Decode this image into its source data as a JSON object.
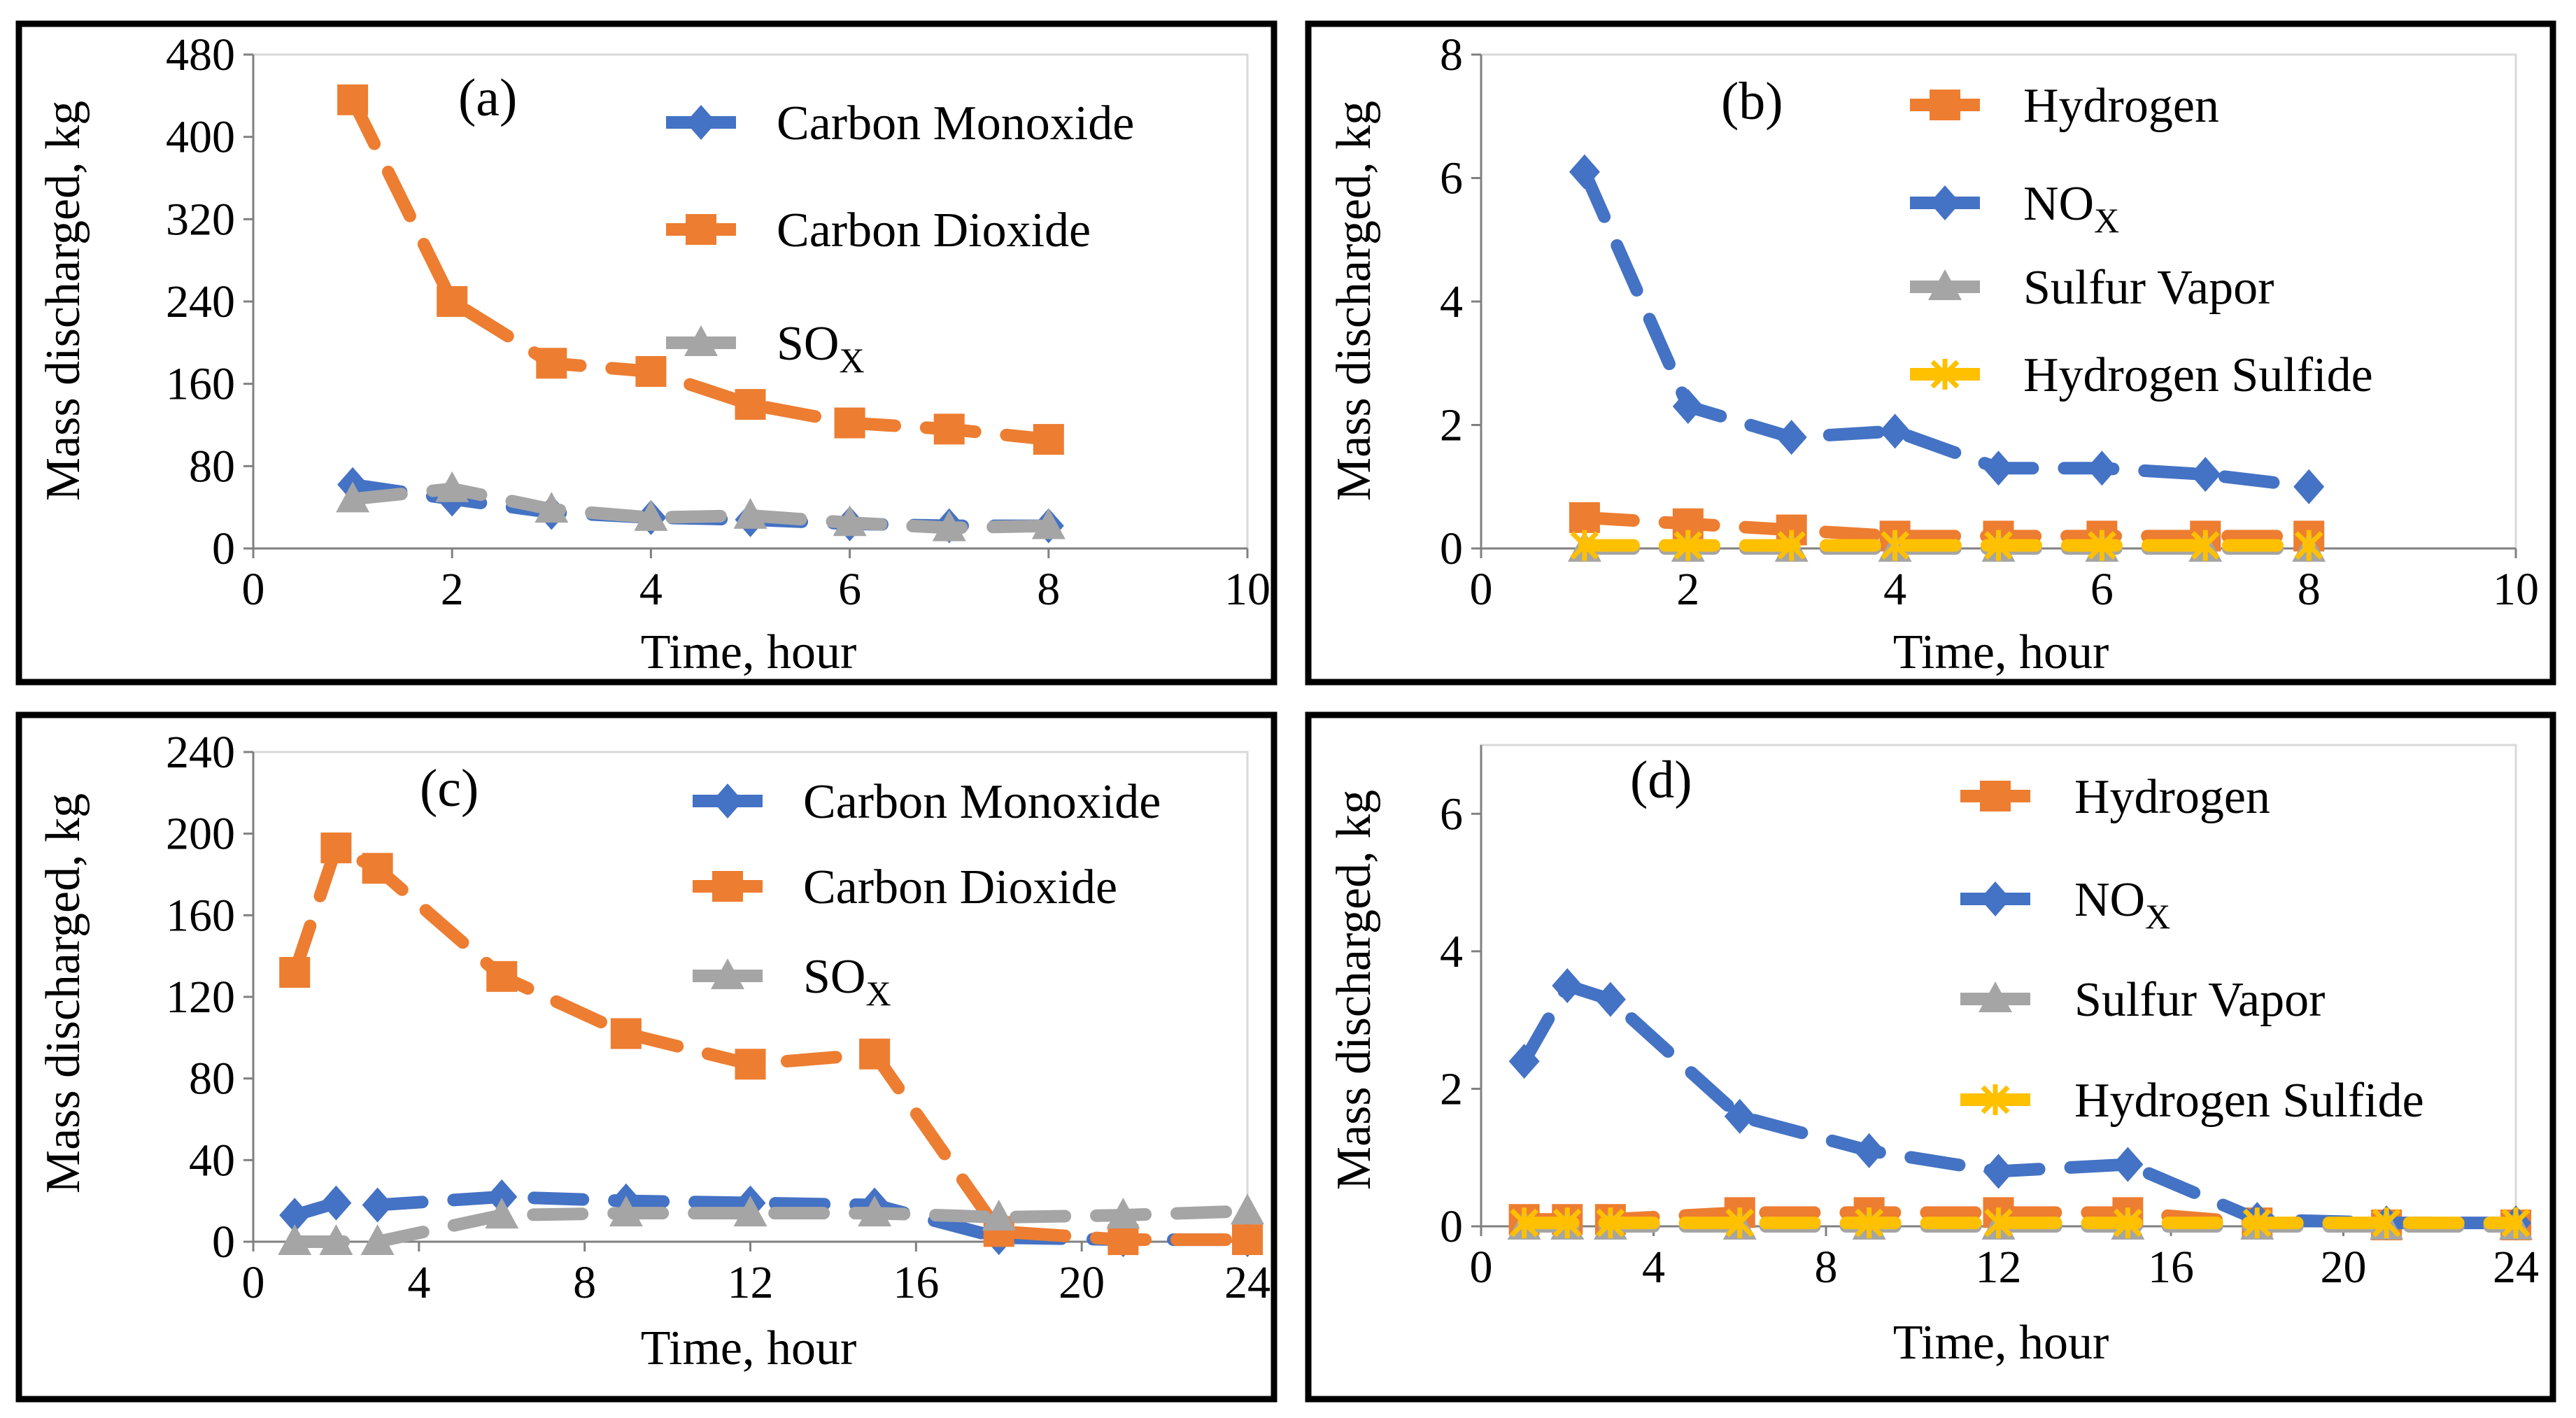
{
  "colors": {
    "co": "#4472C4",
    "co2": "#ED7D31",
    "sox": "#A5A5A5",
    "hydrogen": "#ED7D31",
    "nox": "#4472C4",
    "sulfur_vapor": "#A5A5A5",
    "h2s": "#FFC000"
  },
  "chart_data": [
    {
      "id": "a",
      "type": "line",
      "panel_label": "(a)",
      "xlabel": "Time, hour",
      "ylabel": "Mass discharged, kg",
      "xlim": [
        0,
        10
      ],
      "ylim": [
        0,
        480
      ],
      "xticks": [
        0,
        2,
        4,
        6,
        8,
        10
      ],
      "yticks": [
        0,
        80,
        160,
        240,
        320,
        400,
        480
      ],
      "series": [
        {
          "name": "Carbon Monoxide",
          "name_sub": "",
          "marker": "diamond",
          "color": "#4472C4",
          "x": [
            1,
            2,
            3,
            4,
            5,
            6,
            7,
            8
          ],
          "y": [
            62,
            48,
            35,
            30,
            28,
            24,
            22,
            22
          ]
        },
        {
          "name": "Carbon Dioxide",
          "name_sub": "",
          "marker": "square",
          "color": "#ED7D31",
          "x": [
            1,
            2,
            3,
            4,
            5,
            6,
            7,
            8
          ],
          "y": [
            436,
            240,
            180,
            172,
            140,
            122,
            116,
            106
          ]
        },
        {
          "name": "SO",
          "name_sub": "X",
          "marker": "triangle",
          "color": "#A5A5A5",
          "x": [
            1,
            2,
            3,
            4,
            5,
            6,
            7,
            8
          ],
          "y": [
            48,
            58,
            38,
            30,
            32,
            25,
            20,
            22
          ]
        }
      ]
    },
    {
      "id": "b",
      "type": "line",
      "panel_label": "(b)",
      "xlabel": "Time, hour",
      "ylabel": "Mass discharged, kg",
      "xlim": [
        0,
        10
      ],
      "ylim": [
        0,
        8
      ],
      "xticks": [
        0,
        2,
        4,
        6,
        8,
        10
      ],
      "yticks": [
        0,
        2,
        4,
        6,
        8
      ],
      "series": [
        {
          "name": "Hydrogen",
          "name_sub": "",
          "marker": "square",
          "color": "#ED7D31",
          "x": [
            1,
            2,
            3,
            4,
            5,
            6,
            7,
            8
          ],
          "y": [
            0.5,
            0.4,
            0.3,
            0.2,
            0.2,
            0.2,
            0.2,
            0.2
          ]
        },
        {
          "name": "NO",
          "name_sub": "X",
          "marker": "diamond",
          "color": "#4472C4",
          "x": [
            1,
            2,
            3,
            4,
            5,
            6,
            7,
            8
          ],
          "y": [
            6.1,
            2.3,
            1.8,
            1.9,
            1.3,
            1.3,
            1.2,
            1.0
          ]
        },
        {
          "name": "Sulfur Vapor",
          "name_sub": "",
          "marker": "triangle",
          "color": "#A5A5A5",
          "x": [
            1,
            2,
            3,
            4,
            5,
            6,
            7,
            8
          ],
          "y": [
            0,
            0,
            0,
            0,
            0,
            0,
            0,
            0
          ]
        },
        {
          "name": "Hydrogen Sulfide",
          "name_sub": "",
          "marker": "star",
          "color": "#FFC000",
          "x": [
            1,
            2,
            3,
            4,
            5,
            6,
            7,
            8
          ],
          "y": [
            0.05,
            0.05,
            0.05,
            0.05,
            0.05,
            0.05,
            0.05,
            0.05
          ]
        }
      ]
    },
    {
      "id": "c",
      "type": "line",
      "panel_label": "(c)",
      "xlabel": "Time, hour",
      "ylabel": "Mass discharged, kg",
      "xlim": [
        0,
        24
      ],
      "ylim": [
        0,
        240
      ],
      "xticks": [
        0,
        4,
        8,
        12,
        16,
        20,
        24
      ],
      "yticks": [
        0,
        40,
        80,
        120,
        160,
        200,
        240
      ],
      "series": [
        {
          "name": "Carbon Monoxide",
          "name_sub": "",
          "marker": "diamond",
          "color": "#4472C4",
          "x": [
            1,
            2,
            3,
            6,
            9,
            12,
            15,
            18,
            21,
            24
          ],
          "y": [
            13,
            19,
            18,
            22,
            20,
            19,
            18,
            2,
            1,
            1
          ]
        },
        {
          "name": "Carbon Dioxide",
          "name_sub": "",
          "marker": "square",
          "color": "#ED7D31",
          "x": [
            1,
            2,
            3,
            6,
            9,
            12,
            15,
            18,
            21,
            24
          ],
          "y": [
            132,
            193,
            183,
            130,
            102,
            87,
            92,
            5,
            1,
            1
          ]
        },
        {
          "name": "SO",
          "name_sub": "X",
          "marker": "triangle",
          "color": "#A5A5A5",
          "x": [
            1,
            2,
            3,
            6,
            9,
            12,
            15,
            18,
            21,
            24
          ],
          "y": [
            0,
            0,
            0,
            13,
            14,
            14,
            14,
            12,
            13,
            15
          ]
        }
      ]
    },
    {
      "id": "d",
      "type": "line",
      "panel_label": "(d)",
      "xlabel": "Time, hour",
      "ylabel": "Mass discharged, kg",
      "xlim": [
        0,
        24
      ],
      "ylim": [
        0,
        7
      ],
      "xticks": [
        0,
        4,
        8,
        12,
        16,
        20,
        24
      ],
      "yticks": [
        0,
        2,
        4,
        6
      ],
      "series": [
        {
          "name": "Hydrogen",
          "name_sub": "",
          "marker": "square",
          "color": "#ED7D31",
          "x": [
            1,
            2,
            3,
            6,
            9,
            12,
            15,
            18,
            21,
            24
          ],
          "y": [
            0.1,
            0.1,
            0.1,
            0.2,
            0.2,
            0.2,
            0.2,
            0.05,
            0.02,
            0.02
          ]
        },
        {
          "name": "NO",
          "name_sub": "X",
          "marker": "diamond",
          "color": "#4472C4",
          "x": [
            1,
            2,
            3,
            6,
            9,
            12,
            15,
            18,
            21,
            24
          ],
          "y": [
            2.4,
            3.5,
            3.3,
            1.6,
            1.1,
            0.8,
            0.9,
            0.1,
            0.05,
            0.05
          ]
        },
        {
          "name": "Sulfur Vapor",
          "name_sub": "",
          "marker": "triangle",
          "color": "#A5A5A5",
          "x": [
            1,
            2,
            3,
            6,
            9,
            12,
            15,
            18,
            21,
            24
          ],
          "y": [
            0,
            0,
            0,
            0,
            0,
            0,
            0,
            0,
            0,
            0
          ]
        },
        {
          "name": "Hydrogen Sulfide",
          "name_sub": "",
          "marker": "star",
          "color": "#FFC000",
          "x": [
            1,
            2,
            3,
            6,
            9,
            12,
            15,
            18,
            21,
            24
          ],
          "y": [
            0.05,
            0.05,
            0.05,
            0.05,
            0.05,
            0.05,
            0.05,
            0.05,
            0.05,
            0.05
          ]
        }
      ]
    }
  ]
}
